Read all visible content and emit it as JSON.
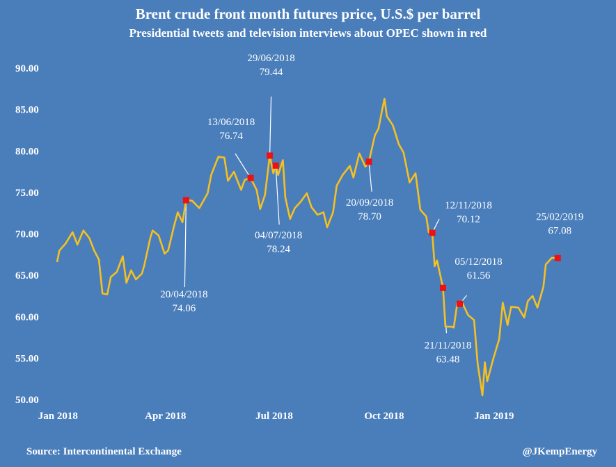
{
  "title": "Brent crude front month futures price, U.S.$ per barrel",
  "subtitle": "Presidential tweets and television interviews about OPEC shown in red",
  "source": "Source: Intercontinental Exchange",
  "credit": "@JKempEnergy",
  "colors": {
    "background": "#4a7ebb",
    "line": "#f5c021",
    "marker": "#ee1111",
    "text": "#ffffff"
  },
  "chart_data": {
    "type": "line",
    "grid": false,
    "legend": "none",
    "ylim": [
      50,
      90
    ],
    "y_ticks": [
      "50.00",
      "55.00",
      "60.00",
      "65.00",
      "70.00",
      "75.00",
      "80.00",
      "85.00",
      "90.00"
    ],
    "x_range": [
      "2018-01-02",
      "2019-03-05"
    ],
    "x_ticks": [
      {
        "date": "2018-01-01",
        "label": "Jan 2018"
      },
      {
        "date": "2018-04-01",
        "label": "Apr 2018"
      },
      {
        "date": "2018-07-01",
        "label": "Jul 2018"
      },
      {
        "date": "2018-10-01",
        "label": "Oct 2018"
      },
      {
        "date": "2019-01-01",
        "label": "Jan 2019"
      }
    ],
    "series": [
      {
        "points": [
          [
            "2018-01-02",
            66.6
          ],
          [
            "2018-01-04",
            68.0
          ],
          [
            "2018-01-09",
            68.8
          ],
          [
            "2018-01-15",
            70.2
          ],
          [
            "2018-01-19",
            68.7
          ],
          [
            "2018-01-24",
            70.4
          ],
          [
            "2018-01-29",
            69.5
          ],
          [
            "2018-02-02",
            68.0
          ],
          [
            "2018-02-06",
            66.9
          ],
          [
            "2018-02-09",
            62.8
          ],
          [
            "2018-02-13",
            62.7
          ],
          [
            "2018-02-16",
            64.8
          ],
          [
            "2018-02-21",
            65.4
          ],
          [
            "2018-02-26",
            67.3
          ],
          [
            "2018-03-01",
            64.1
          ],
          [
            "2018-03-05",
            65.6
          ],
          [
            "2018-03-09",
            64.5
          ],
          [
            "2018-03-14",
            65.2
          ],
          [
            "2018-03-16",
            66.2
          ],
          [
            "2018-03-21",
            69.5
          ],
          [
            "2018-03-23",
            70.4
          ],
          [
            "2018-03-28",
            69.8
          ],
          [
            "2018-04-02",
            67.6
          ],
          [
            "2018-04-05",
            68.0
          ],
          [
            "2018-04-10",
            71.0
          ],
          [
            "2018-04-13",
            72.6
          ],
          [
            "2018-04-17",
            71.4
          ],
          [
            "2018-04-20",
            74.06
          ],
          [
            "2018-04-25",
            74.0
          ],
          [
            "2018-05-01",
            73.1
          ],
          [
            "2018-05-08",
            74.9
          ],
          [
            "2018-05-11",
            77.1
          ],
          [
            "2018-05-17",
            79.3
          ],
          [
            "2018-05-22",
            79.2
          ],
          [
            "2018-05-25",
            76.4
          ],
          [
            "2018-05-30",
            77.5
          ],
          [
            "2018-06-05",
            75.3
          ],
          [
            "2018-06-08",
            76.5
          ],
          [
            "2018-06-13",
            76.74
          ],
          [
            "2018-06-18",
            75.3
          ],
          [
            "2018-06-21",
            73.0
          ],
          [
            "2018-06-25",
            74.7
          ],
          [
            "2018-06-29",
            79.44
          ],
          [
            "2018-07-02",
            77.3
          ],
          [
            "2018-07-04",
            78.24
          ],
          [
            "2018-07-06",
            77.1
          ],
          [
            "2018-07-10",
            78.9
          ],
          [
            "2018-07-12",
            74.4
          ],
          [
            "2018-07-16",
            71.8
          ],
          [
            "2018-07-20",
            73.1
          ],
          [
            "2018-07-25",
            73.9
          ],
          [
            "2018-07-30",
            74.9
          ],
          [
            "2018-08-03",
            73.2
          ],
          [
            "2018-08-08",
            72.3
          ],
          [
            "2018-08-13",
            72.6
          ],
          [
            "2018-08-16",
            70.8
          ],
          [
            "2018-08-21",
            72.6
          ],
          [
            "2018-08-24",
            75.8
          ],
          [
            "2018-08-29",
            77.1
          ],
          [
            "2018-09-04",
            78.2
          ],
          [
            "2018-09-07",
            76.8
          ],
          [
            "2018-09-12",
            79.7
          ],
          [
            "2018-09-17",
            78.1
          ],
          [
            "2018-09-20",
            78.7
          ],
          [
            "2018-09-25",
            81.9
          ],
          [
            "2018-09-28",
            82.7
          ],
          [
            "2018-10-01",
            84.9
          ],
          [
            "2018-10-03",
            86.3
          ],
          [
            "2018-10-05",
            84.2
          ],
          [
            "2018-10-10",
            83.1
          ],
          [
            "2018-10-15",
            80.8
          ],
          [
            "2018-10-19",
            79.8
          ],
          [
            "2018-10-24",
            76.2
          ],
          [
            "2018-10-29",
            77.3
          ],
          [
            "2018-11-02",
            72.9
          ],
          [
            "2018-11-07",
            72.1
          ],
          [
            "2018-11-09",
            70.2
          ],
          [
            "2018-11-12",
            70.12
          ],
          [
            "2018-11-14",
            66.1
          ],
          [
            "2018-11-16",
            66.8
          ],
          [
            "2018-11-21",
            63.48
          ],
          [
            "2018-11-23",
            58.8
          ],
          [
            "2018-11-28",
            58.8
          ],
          [
            "2018-11-30",
            58.7
          ],
          [
            "2018-12-03",
            61.7
          ],
          [
            "2018-12-05",
            61.56
          ],
          [
            "2018-12-07",
            61.7
          ],
          [
            "2018-12-12",
            60.2
          ],
          [
            "2018-12-17",
            59.6
          ],
          [
            "2018-12-20",
            54.3
          ],
          [
            "2018-12-24",
            50.5
          ],
          [
            "2018-12-26",
            54.5
          ],
          [
            "2018-12-28",
            52.2
          ],
          [
            "2019-01-02",
            54.9
          ],
          [
            "2019-01-07",
            57.3
          ],
          [
            "2019-01-10",
            61.7
          ],
          [
            "2019-01-14",
            59.0
          ],
          [
            "2019-01-17",
            61.2
          ],
          [
            "2019-01-23",
            61.1
          ],
          [
            "2019-01-28",
            59.9
          ],
          [
            "2019-01-31",
            61.9
          ],
          [
            "2019-02-04",
            62.5
          ],
          [
            "2019-02-08",
            61.1
          ],
          [
            "2019-02-13",
            63.6
          ],
          [
            "2019-02-15",
            66.3
          ],
          [
            "2019-02-20",
            67.1
          ],
          [
            "2019-02-25",
            67.08
          ],
          [
            "2019-02-27",
            66.9
          ]
        ]
      }
    ],
    "annotations": [
      {
        "date": "2018-04-20",
        "value": 74.06,
        "label_date": "20/04/2018",
        "label_value": "74.06",
        "side": "below"
      },
      {
        "date": "2018-06-13",
        "value": 76.74,
        "label_date": "13/06/2018",
        "label_value": "76.74",
        "side": "above"
      },
      {
        "date": "2018-06-29",
        "value": 79.44,
        "label_date": "29/06/2018",
        "label_value": "79.44",
        "side": "above"
      },
      {
        "date": "2018-07-04",
        "value": 78.24,
        "label_date": "04/07/2018",
        "label_value": "78.24",
        "side": "below"
      },
      {
        "date": "2018-09-20",
        "value": 78.7,
        "label_date": "20/09/2018",
        "label_value": "78.70",
        "side": "below"
      },
      {
        "date": "2018-11-12",
        "value": 70.12,
        "label_date": "12/11/2018",
        "label_value": "70.12",
        "side": "above"
      },
      {
        "date": "2018-11-21",
        "value": 63.48,
        "label_date": "21/11/2018",
        "label_value": "63.48",
        "side": "below"
      },
      {
        "date": "2018-12-05",
        "value": 61.56,
        "label_date": "05/12/2018",
        "label_value": "61.56",
        "side": "above"
      },
      {
        "date": "2019-02-25",
        "value": 67.08,
        "label_date": "25/02/2019",
        "label_value": "67.08",
        "side": "above"
      }
    ]
  }
}
